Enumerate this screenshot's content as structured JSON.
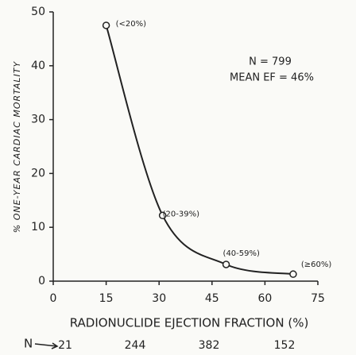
{
  "chart_data": {
    "type": "line",
    "x_label": "RADIONUCLIDE EJECTION FRACTION (%)",
    "y_label": "% ONE-YEAR CARDIAC MORTALITY",
    "annotations": [
      "N = 799",
      "MEAN EF = 46%"
    ],
    "x": [
      15,
      31,
      49,
      68
    ],
    "series": [
      {
        "color": "#222222",
        "values": [
          47.5,
          12.2,
          3.1,
          1.3
        ]
      }
    ],
    "point_labels": [
      "(<20%)",
      "(20-39%)",
      "(40-59%)",
      "(≥60%)"
    ],
    "n_label": "N",
    "n_values": [
      "21",
      "244",
      "382",
      "152"
    ],
    "xlim": [
      0,
      75
    ],
    "xticks": [
      0,
      15,
      30,
      45,
      60,
      75
    ],
    "ylim": [
      0,
      50
    ],
    "yticks": [
      0,
      10,
      20,
      30,
      40,
      50
    ]
  }
}
